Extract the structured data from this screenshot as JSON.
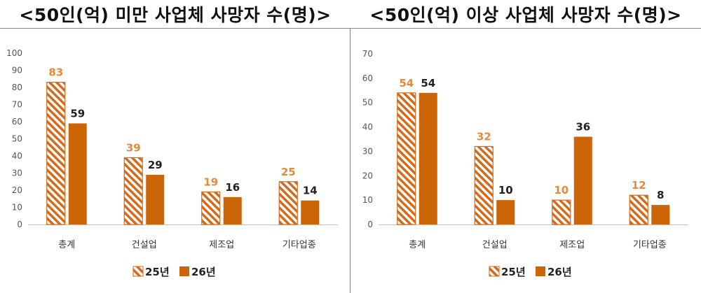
{
  "colors": {
    "s25": "#D46A1A",
    "s25_label": "#E8893A",
    "s26": "#CC6508",
    "s26_label": "#222222"
  },
  "chart_data": [
    {
      "type": "bar",
      "title": "<50인(억) 미만 사업체 사망자 수(명)>",
      "categories": [
        "총계",
        "건설업",
        "제조업",
        "기타업종"
      ],
      "series": [
        {
          "name": "25년",
          "values": [
            83,
            39,
            19,
            25
          ]
        },
        {
          "name": "26년",
          "values": [
            59,
            29,
            16,
            14
          ]
        }
      ],
      "ylim": [
        0,
        100
      ],
      "yticks": [
        "0",
        "10",
        "20",
        "30",
        "40",
        "50",
        "60",
        "70",
        "80",
        "90",
        "100"
      ],
      "grid": false,
      "legend": "bottom"
    },
    {
      "type": "bar",
      "title": "<50인(억) 이상 사업체 사망자 수(명)>",
      "categories": [
        "총계",
        "건설업",
        "제조업",
        "기타업종"
      ],
      "series": [
        {
          "name": "25년",
          "values": [
            54,
            32,
            10,
            12
          ]
        },
        {
          "name": "26년",
          "values": [
            54,
            10,
            36,
            8
          ]
        }
      ],
      "ylim": [
        0,
        70
      ],
      "yticks": [
        "0",
        "10",
        "20",
        "30",
        "40",
        "50",
        "60",
        "70"
      ],
      "grid": false,
      "legend": "bottom"
    }
  ]
}
